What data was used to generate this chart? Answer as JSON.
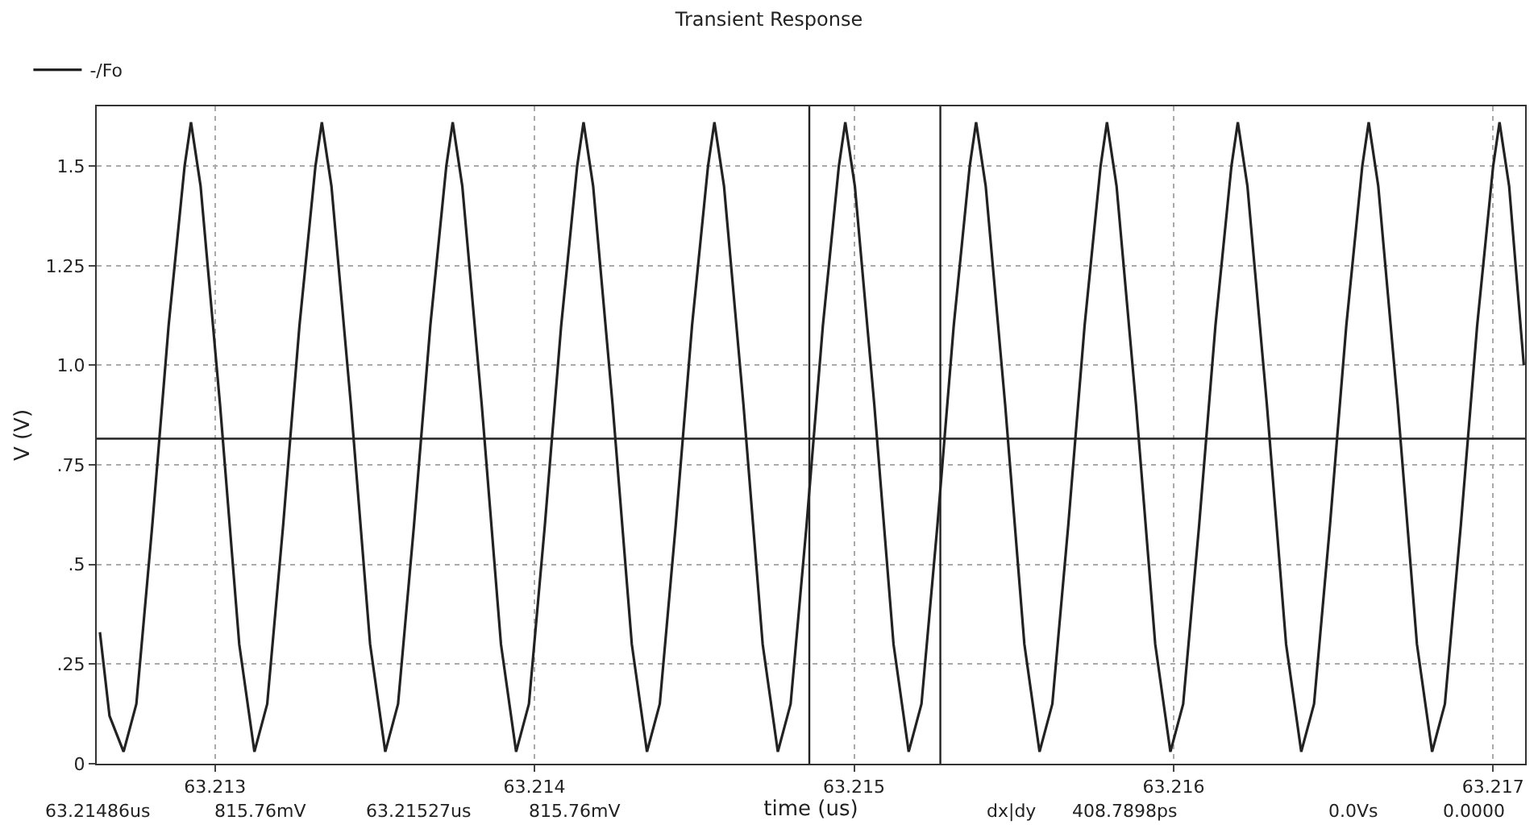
{
  "chart_data": {
    "type": "line",
    "title": "Transient Response",
    "xlabel": "time (us)",
    "ylabel": "V (V)",
    "xlim": [
      63.21263,
      63.2171
    ],
    "xticks": [
      63.213,
      63.214,
      63.215,
      63.216,
      63.217
    ],
    "ylim": [
      0,
      1.65
    ],
    "yticks": [
      {
        "value": 0,
        "label": "0"
      },
      {
        "value": 0.25,
        "label": ".25"
      },
      {
        "value": 0.5,
        "label": ".5"
      },
      {
        "value": 0.75,
        "label": ".75"
      },
      {
        "value": 1,
        "label": "1.0"
      },
      {
        "value": 1.25,
        "label": "1.25"
      },
      {
        "value": 1.5,
        "label": "1.5"
      }
    ],
    "grid": true,
    "legend": "top left",
    "marker": "none",
    "line_style": "solid",
    "series": [
      {
        "name": "-/Fo",
        "color": "#222222",
        "x": [
          63.21264,
          63.21267,
          63.212714,
          63.212754,
          63.212804,
          63.212855,
          63.212905,
          63.212925,
          63.212955,
          63.213016,
          63.213076,
          63.2131235,
          63.2131635,
          63.2132135,
          63.2132645,
          63.2133145,
          63.2133345,
          63.2133645,
          63.2134255,
          63.2134855,
          63.213533,
          63.213573,
          63.213623,
          63.213674,
          63.213724,
          63.213744,
          63.213774,
          63.213835,
          63.213895,
          63.2139425,
          63.2139825,
          63.2140325,
          63.2140835,
          63.2141335,
          63.2141535,
          63.2141835,
          63.2142445,
          63.2143045,
          63.214352,
          63.214392,
          63.214442,
          63.214493,
          63.214543,
          63.214563,
          63.214593,
          63.214654,
          63.214714,
          63.2147615,
          63.2148015,
          63.2148515,
          63.2149025,
          63.2149525,
          63.2149725,
          63.2150025,
          63.2150635,
          63.2151235,
          63.215171,
          63.215211,
          63.215261,
          63.215312,
          63.215362,
          63.215382,
          63.215412,
          63.215473,
          63.215533,
          63.2155805,
          63.2156205,
          63.2156705,
          63.2157215,
          63.2157715,
          63.2157915,
          63.2158215,
          63.2158825,
          63.2159425,
          63.21599,
          63.21603,
          63.21608,
          63.216131,
          63.216181,
          63.216201,
          63.216231,
          63.216292,
          63.216352,
          63.2163995,
          63.2164395,
          63.2164895,
          63.2165405,
          63.2165905,
          63.2166105,
          63.2166405,
          63.2167015,
          63.2167615,
          63.216809,
          63.216849,
          63.216899,
          63.21695,
          63.217,
          63.21702,
          63.21705,
          63.217096
        ],
        "values": [
          0.33,
          0.12,
          0.03,
          0.15,
          0.6,
          1.1,
          1.5,
          1.61,
          1.45,
          0.9,
          0.3,
          0.03,
          0.15,
          0.6,
          1.1,
          1.5,
          1.61,
          1.45,
          0.9,
          0.3,
          0.03,
          0.15,
          0.6,
          1.1,
          1.5,
          1.61,
          1.45,
          0.9,
          0.3,
          0.03,
          0.15,
          0.6,
          1.1,
          1.5,
          1.61,
          1.45,
          0.9,
          0.3,
          0.03,
          0.15,
          0.6,
          1.1,
          1.5,
          1.61,
          1.45,
          0.9,
          0.3,
          0.03,
          0.15,
          0.6,
          1.1,
          1.5,
          1.61,
          1.45,
          0.9,
          0.3,
          0.03,
          0.15,
          0.6,
          1.1,
          1.5,
          1.61,
          1.45,
          0.9,
          0.3,
          0.03,
          0.15,
          0.6,
          1.1,
          1.5,
          1.61,
          1.45,
          0.9,
          0.3,
          0.03,
          0.15,
          0.6,
          1.1,
          1.5,
          1.61,
          1.45,
          0.9,
          0.3,
          0.03,
          0.15,
          0.6,
          1.1,
          1.5,
          1.61,
          1.45,
          0.9,
          0.3,
          0.03,
          0.15,
          0.6,
          1.1,
          1.5,
          1.61,
          1.45,
          1.0
        ]
      }
    ],
    "ref_lines": [
      {
        "axis": "y",
        "value": 0.81576,
        "label": null,
        "color": "#222222"
      },
      {
        "axis": "x",
        "value": 63.21486,
        "label": null,
        "color": "#222222"
      },
      {
        "axis": "x",
        "value": 63.21527,
        "label": null,
        "color": "#222222"
      }
    ],
    "annotations": [
      "63.21486us",
      "815.76mV",
      "63.21527us",
      "815.76mV",
      "dx|dy",
      "408.7898ps",
      "0.0Vs",
      "0.0000"
    ]
  }
}
